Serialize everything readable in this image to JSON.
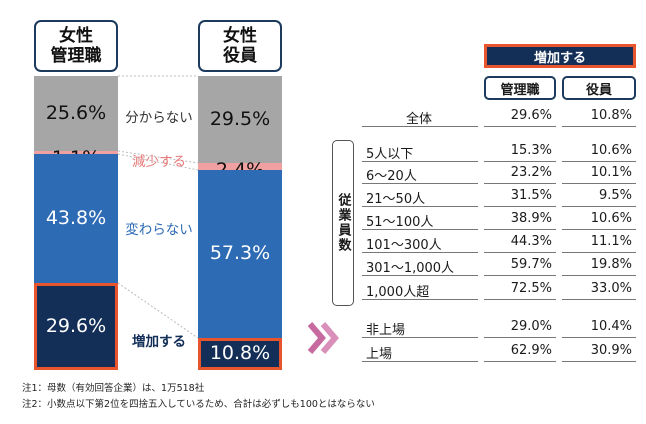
{
  "bars": {
    "left_title": [
      "女性",
      "管理職"
    ],
    "right_title": [
      "女性",
      "役員"
    ]
  },
  "chart_data": {
    "type": "stacked-bar",
    "categories": [
      "女性管理職",
      "女性役員"
    ],
    "series": [
      {
        "name": "分からない",
        "values": [
          25.6,
          29.5
        ],
        "color": "#a6a6a6"
      },
      {
        "name": "減少する",
        "values": [
          1.1,
          2.4
        ],
        "color": "#f0a0a0"
      },
      {
        "name": "変わらない",
        "values": [
          43.8,
          57.3
        ],
        "color": "#2e6bb5"
      },
      {
        "name": "増加する",
        "values": [
          29.6,
          10.8
        ],
        "color": "#132f57"
      }
    ],
    "value_labels": {
      "left": [
        "25.6%",
        "1.1%",
        "43.8%",
        "29.6%"
      ],
      "right": [
        "29.5%",
        "2.4%",
        "57.3%",
        "10.8%"
      ]
    },
    "highlight_color": "#e8542b"
  },
  "table": {
    "header_main": "増加する",
    "col_headers": [
      "管理職",
      "役員"
    ],
    "group_label": "従業員数",
    "rows": [
      {
        "label": "全体",
        "a": "29.6%",
        "b": "10.8%"
      },
      {
        "label": "5人以下",
        "a": "15.3%",
        "b": "10.6%"
      },
      {
        "label": "6～20人",
        "a": "23.2%",
        "b": "10.1%"
      },
      {
        "label": "21～50人",
        "a": "31.5%",
        "b": "9.5%"
      },
      {
        "label": "51～100人",
        "a": "38.9%",
        "b": "10.6%"
      },
      {
        "label": "101～300人",
        "a": "44.3%",
        "b": "11.1%"
      },
      {
        "label": "301～1,000人",
        "a": "59.7%",
        "b": "19.8%"
      },
      {
        "label": "1,000人超",
        "a": "72.5%",
        "b": "33.0%"
      },
      {
        "label": "非上場",
        "a": "29.0%",
        "b": "10.4%"
      },
      {
        "label": "上場",
        "a": "62.9%",
        "b": "30.9%"
      }
    ]
  },
  "notes": [
    "注1：母数（有効回答企業）は、1万518社",
    "注2：小数点以下第2位を四捨五入しているため、合計は必ずしも100とはならない"
  ]
}
